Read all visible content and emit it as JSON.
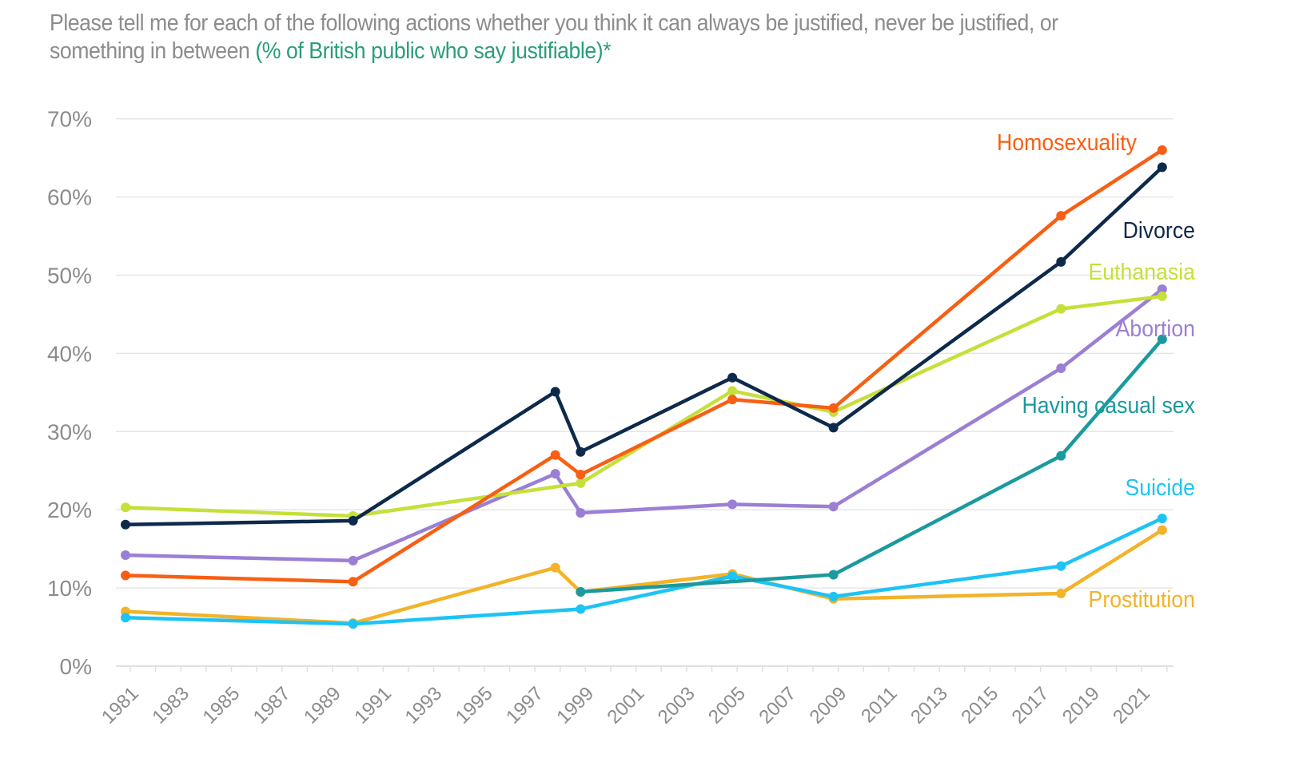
{
  "title": {
    "main": "Please tell me for each of the following actions whether you think it can always be justified, never be justified, or something in between ",
    "highlight": "(% of British public who say justifiable)",
    "suffix": "*"
  },
  "chart_data": {
    "type": "line",
    "xlim": [
      1981,
      2022
    ],
    "ylim": [
      0,
      70
    ],
    "y_ticks": [
      0,
      10,
      20,
      30,
      40,
      50,
      60,
      70
    ],
    "y_tick_labels": [
      "0%",
      "10%",
      "20%",
      "30%",
      "40%",
      "50%",
      "60%",
      "70%"
    ],
    "x_tick_labels": [
      "1981",
      "1983",
      "1985",
      "1987",
      "1989",
      "1991",
      "1993",
      "1995",
      "1997",
      "1999",
      "2001",
      "2003",
      "2005",
      "2007",
      "2009",
      "2011",
      "2013",
      "2015",
      "2017",
      "2019",
      "2021"
    ],
    "grid": "horizontal",
    "legend": "direct labels at right",
    "series": [
      {
        "name": "Homosexuality",
        "color": "#f85f13",
        "x": [
          1981,
          1990,
          1998,
          1999,
          2005,
          2009,
          2018,
          2022
        ],
        "values": [
          11.6,
          10.8,
          27.0,
          24.5,
          34.1,
          33.0,
          57.6,
          66.0
        ]
      },
      {
        "name": "Divorce",
        "color": "#0e2a4b",
        "x": [
          1981,
          1990,
          1998,
          1999,
          2005,
          2009,
          2018,
          2022
        ],
        "values": [
          18.1,
          18.6,
          35.1,
          27.4,
          36.9,
          30.5,
          51.7,
          63.8
        ]
      },
      {
        "name": "Euthanasia",
        "color": "#c5e03a",
        "x": [
          1981,
          1990,
          1999,
          2005,
          2009,
          2018,
          2022
        ],
        "values": [
          20.3,
          19.2,
          23.4,
          35.2,
          32.5,
          45.7,
          47.3
        ]
      },
      {
        "name": "Abortion",
        "color": "#9b7fd4",
        "x": [
          1981,
          1990,
          1998,
          1999,
          2005,
          2009,
          2018,
          2022
        ],
        "values": [
          14.2,
          13.5,
          24.6,
          19.6,
          20.7,
          20.4,
          38.1,
          48.2
        ]
      },
      {
        "name": "Having casual sex",
        "color": "#1a9a9e",
        "x": [
          1999,
          2009,
          2018,
          2022
        ],
        "values": [
          9.5,
          11.7,
          26.9,
          41.8
        ]
      },
      {
        "name": "Suicide",
        "color": "#1ec3f5",
        "x": [
          1981,
          1990,
          1999,
          2005,
          2009,
          2018,
          2022
        ],
        "values": [
          6.2,
          5.4,
          7.3,
          11.5,
          8.9,
          12.8,
          18.9
        ]
      },
      {
        "name": "Prostitution",
        "color": "#f2b32a",
        "x": [
          1981,
          1990,
          1998,
          1999,
          2005,
          2009,
          2018,
          2022
        ],
        "values": [
          7.0,
          5.5,
          12.6,
          9.5,
          11.8,
          8.6,
          9.3,
          17.4
        ]
      }
    ]
  }
}
